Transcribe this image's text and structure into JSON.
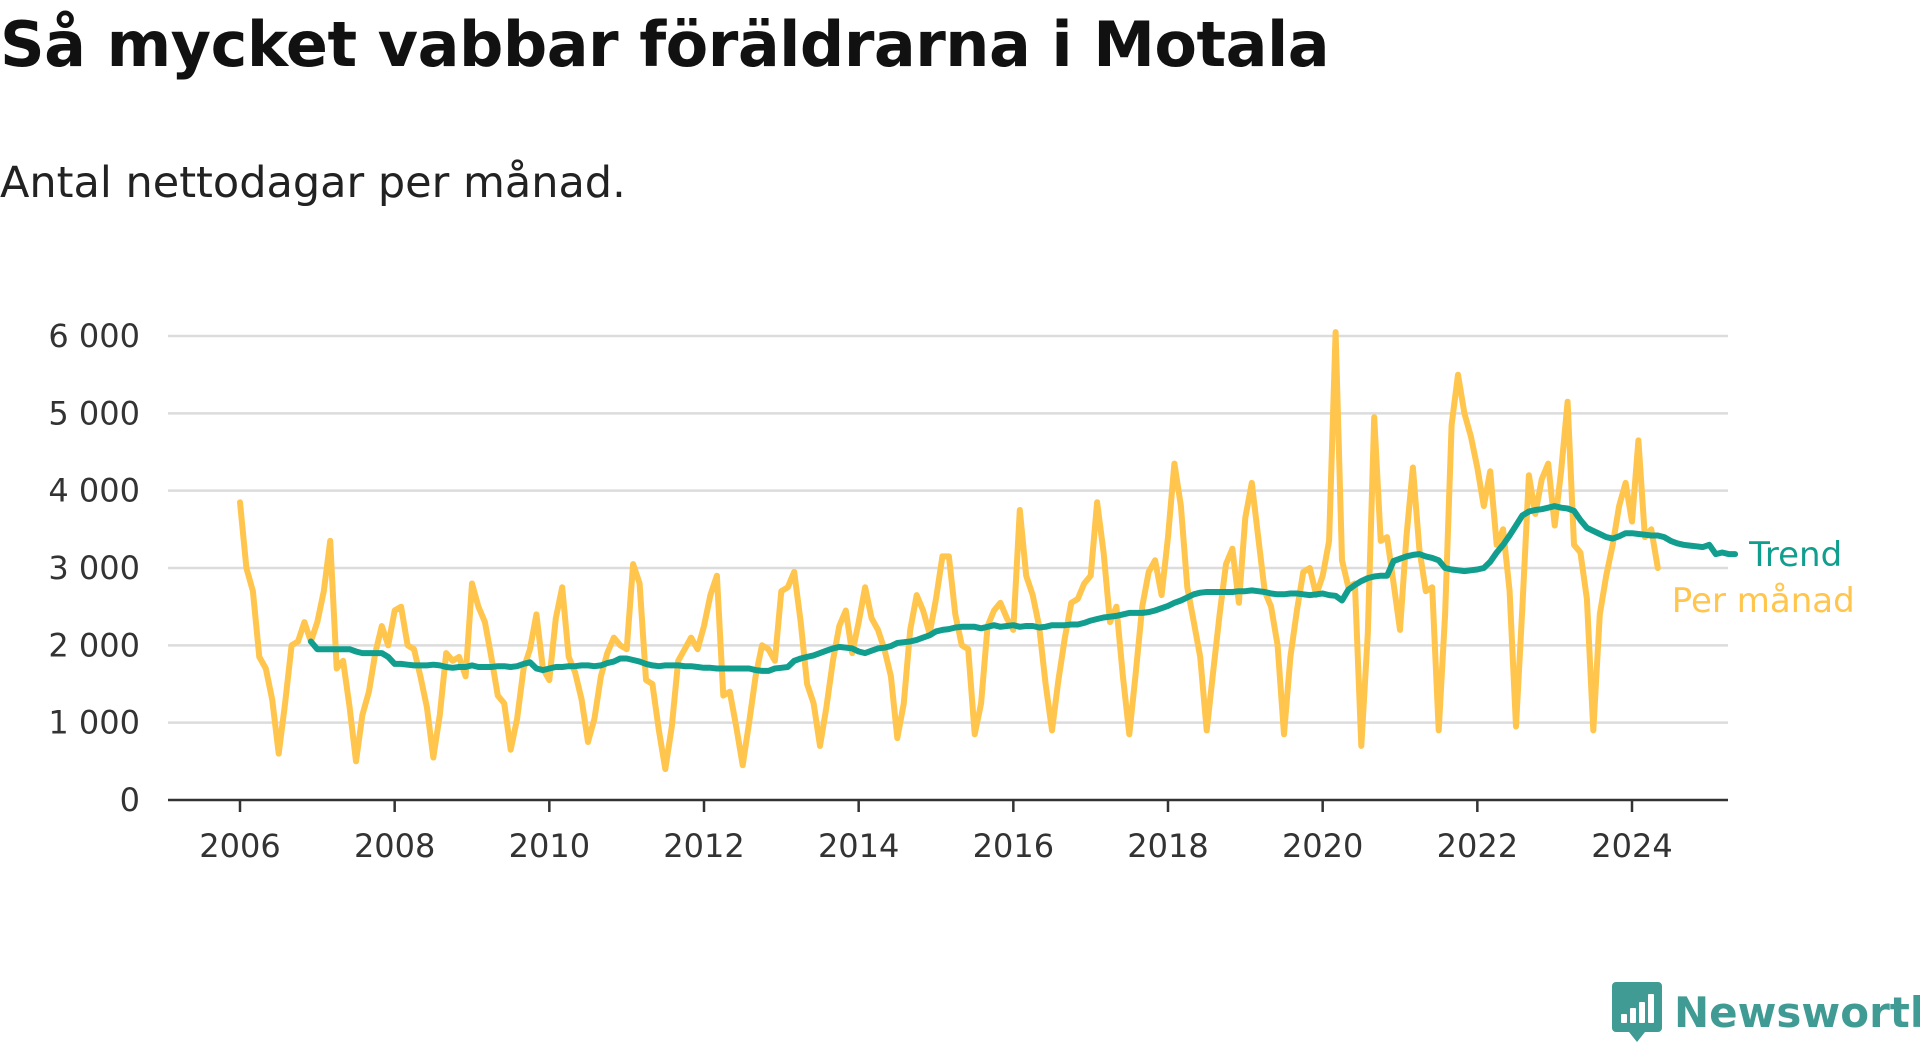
{
  "chart_data": {
    "type": "line",
    "title": "Så mycket vabbar föräldrarna i Motala",
    "subtitle": "Antal nettodagar per månad.",
    "xlabel": "",
    "ylabel": "",
    "xlim": [
      2006,
      2024.5
    ],
    "ylim": [
      0,
      6000
    ],
    "x_ticks": [
      2006,
      2008,
      2010,
      2012,
      2014,
      2016,
      2018,
      2020,
      2022,
      2024
    ],
    "x_tick_labels": [
      "2006",
      "2008",
      "2010",
      "2012",
      "2014",
      "2016",
      "2018",
      "2020",
      "2022",
      "2024"
    ],
    "y_ticks": [
      0,
      1000,
      2000,
      3000,
      4000,
      5000,
      6000
    ],
    "y_tick_labels": [
      "0",
      "1 000",
      "2 000",
      "3 000",
      "4 000",
      "5 000",
      "6 000"
    ],
    "grid": "horizontal",
    "legend": "inline-right",
    "series": [
      {
        "name": "Per månad",
        "color": "#ffc54d",
        "start": [
          2006,
          1
        ],
        "values": [
          3850,
          3000,
          2700,
          1850,
          1700,
          1300,
          600,
          1250,
          2000,
          2050,
          2300,
          2050,
          2300,
          2700,
          3350,
          1700,
          1800,
          1200,
          500,
          1100,
          1400,
          1900,
          2250,
          2000,
          2450,
          2500,
          2000,
          1950,
          1600,
          1200,
          550,
          1100,
          1900,
          1800,
          1850,
          1600,
          2800,
          2500,
          2300,
          1850,
          1350,
          1250,
          650,
          1050,
          1700,
          1950,
          2400,
          1700,
          1550,
          2350,
          2750,
          1850,
          1650,
          1300,
          750,
          1050,
          1600,
          1900,
          2100,
          2000,
          1950,
          3050,
          2800,
          1550,
          1500,
          900,
          400,
          950,
          1800,
          1950,
          2100,
          1950,
          2250,
          2650,
          2900,
          1350,
          1400,
          950,
          450,
          1000,
          1600,
          2000,
          1950,
          1800,
          2700,
          2750,
          2950,
          2300,
          1500,
          1250,
          700,
          1200,
          1800,
          2250,
          2450,
          1900,
          2300,
          2750,
          2350,
          2200,
          1950,
          1600,
          800,
          1250,
          2200,
          2650,
          2450,
          2150,
          2600,
          3150,
          3150,
          2400,
          2000,
          1950,
          850,
          1250,
          2250,
          2450,
          2550,
          2350,
          2200,
          3750,
          2900,
          2650,
          2250,
          1500,
          900,
          1550,
          2100,
          2550,
          2600,
          2800,
          2900,
          3850,
          3200,
          2300,
          2500,
          1600,
          850,
          1650,
          2500,
          2950,
          3100,
          2650,
          3400,
          4350,
          3800,
          2750,
          2300,
          1850,
          900,
          1650,
          2400,
          3050,
          3250,
          2550,
          3650,
          4100,
          3400,
          2700,
          2500,
          2000,
          850,
          1850,
          2450,
          2950,
          3000,
          2650,
          2900,
          3350,
          6050,
          3100,
          2750,
          2800,
          700,
          2150,
          4950,
          3350,
          3400,
          2800,
          2200,
          3400,
          4300,
          3250,
          2700,
          2750,
          900,
          2400,
          4850,
          5500,
          5000,
          4700,
          4300,
          3800,
          4250,
          3300,
          3500,
          2700,
          950,
          2500,
          4200,
          3700,
          4150,
          4350,
          3550,
          4250,
          5150,
          3300,
          3200,
          2600,
          900,
          2400,
          2900,
          3300,
          3800,
          4100,
          3600,
          4650,
          3400,
          3500,
          3000
        ]
      },
      {
        "name": "Trend",
        "color": "#119e8f",
        "start": [
          2006,
          12
        ],
        "values": [
          2050,
          1950,
          1950,
          1950,
          1950,
          1950,
          1950,
          1920,
          1900,
          1900,
          1900,
          1900,
          1850,
          1760,
          1760,
          1750,
          1740,
          1740,
          1740,
          1750,
          1740,
          1720,
          1710,
          1720,
          1720,
          1740,
          1720,
          1720,
          1720,
          1730,
          1730,
          1720,
          1730,
          1760,
          1780,
          1700,
          1680,
          1700,
          1720,
          1720,
          1730,
          1730,
          1740,
          1740,
          1730,
          1740,
          1770,
          1790,
          1830,
          1830,
          1810,
          1790,
          1760,
          1740,
          1730,
          1740,
          1740,
          1740,
          1730,
          1730,
          1720,
          1710,
          1710,
          1700,
          1700,
          1700,
          1700,
          1700,
          1700,
          1680,
          1670,
          1670,
          1700,
          1710,
          1720,
          1800,
          1830,
          1850,
          1870,
          1900,
          1930,
          1960,
          1980,
          1970,
          1960,
          1920,
          1900,
          1930,
          1960,
          1970,
          1990,
          2030,
          2040,
          2050,
          2070,
          2100,
          2130,
          2180,
          2200,
          2210,
          2230,
          2240,
          2240,
          2240,
          2220,
          2240,
          2260,
          2240,
          2250,
          2260,
          2240,
          2250,
          2250,
          2230,
          2240,
          2260,
          2260,
          2260,
          2270,
          2270,
          2290,
          2320,
          2340,
          2360,
          2370,
          2380,
          2400,
          2420,
          2420,
          2420,
          2430,
          2450,
          2480,
          2510,
          2550,
          2580,
          2620,
          2660,
          2680,
          2690,
          2690,
          2690,
          2690,
          2690,
          2700,
          2700,
          2710,
          2700,
          2690,
          2670,
          2660,
          2660,
          2670,
          2670,
          2660,
          2650,
          2660,
          2670,
          2650,
          2640,
          2580,
          2720,
          2780,
          2830,
          2870,
          2890,
          2900,
          2900,
          3090,
          3120,
          3150,
          3170,
          3180,
          3150,
          3130,
          3100,
          3000,
          2980,
          2970,
          2960,
          2970,
          2980,
          3000,
          3080,
          3200,
          3300,
          3420,
          3550,
          3680,
          3730,
          3750,
          3760,
          3780,
          3800,
          3780,
          3770,
          3740,
          3620,
          3520,
          3480,
          3440,
          3400,
          3380,
          3410,
          3450,
          3450,
          3440,
          3430,
          3420,
          3420,
          3400,
          3350,
          3320,
          3300,
          3290,
          3280,
          3270,
          3300,
          3180,
          3200,
          3180,
          3180
        ]
      }
    ]
  },
  "branding": {
    "name": "Newsworthy",
    "icon": "chart-bubble-icon",
    "color": "#3f9b93"
  }
}
